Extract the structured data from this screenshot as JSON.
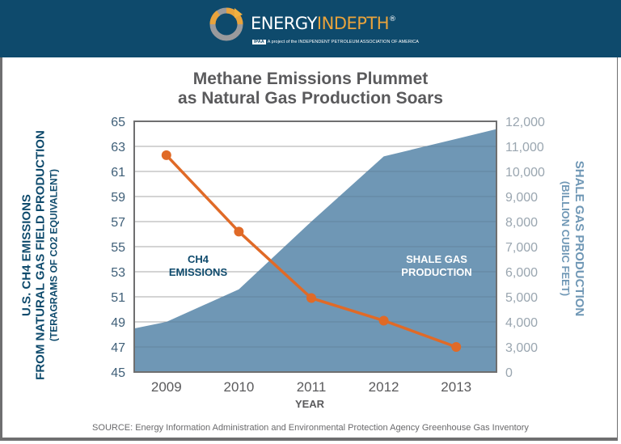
{
  "header": {
    "brand_part1": "ENERGY",
    "brand_part2": "IN",
    "brand_part3": "DEPTH",
    "registered": "®",
    "tagline_badge": "IPAA",
    "tagline": "A project of the INDEPENDENT PETROLEUM ASSOCIATION OF AMERICA",
    "colors": {
      "band": "#0e4a6c",
      "accent": "#e8a33c"
    }
  },
  "footer": {
    "source": "SOURCE: Energy Information Administration and Environmental Protection Agency Greenhouse Gas Inventory"
  },
  "chart_data": {
    "type": "line",
    "title_line1": "Methane Emissions Plummet",
    "title_line2": "as Natural Gas Production Soars",
    "xlabel": "YEAR",
    "categories": [
      "2009",
      "2010",
      "2011",
      "2012",
      "2013"
    ],
    "ylabel_left": {
      "line1": "U.S. CH4 EMISSIONS",
      "line2": "FROM NATURAL GAS FIELD PRODUCTION",
      "line3": "(TERAGRAMS OF CO2 EQUIVALENT)"
    },
    "ylabel_right": {
      "line1": "SHALE GAS PRODUCTION",
      "line2": "(BILLION CUBIC FEET)"
    },
    "ylim_left": [
      45,
      65
    ],
    "yticks_left": [
      "45",
      "47",
      "49",
      "51",
      "53",
      "55",
      "57",
      "59",
      "61",
      "63",
      "65"
    ],
    "ylim_right": [
      0,
      12000
    ],
    "yticks_right": [
      "0",
      "3,000",
      "4,000",
      "5,000",
      "6,000",
      "7,000",
      "8,000",
      "9,000",
      "10,000",
      "11,000",
      "12,000"
    ],
    "right_axis_note": "broken axis: 0 then 3,000 to 12,000",
    "grid": true,
    "series": [
      {
        "name": "CH4 EMISSIONS",
        "kind": "line",
        "axis": "left",
        "color": "#e06a27",
        "values": [
          62.3,
          56.2,
          50.9,
          49.1,
          47.0
        ]
      },
      {
        "name": "SHALE GAS PRODUCTION",
        "kind": "area",
        "axis": "right",
        "color": "#6f97b5",
        "values": [
          4000,
          5300,
          8000,
          10600,
          11300
        ]
      }
    ],
    "annotations": [
      {
        "text_line1": "CH4",
        "text_line2": "EMISSIONS",
        "series": "CH4 EMISSIONS"
      },
      {
        "text_line1": "SHALE GAS",
        "text_line2": "PRODUCTION",
        "series": "SHALE GAS PRODUCTION"
      }
    ]
  }
}
